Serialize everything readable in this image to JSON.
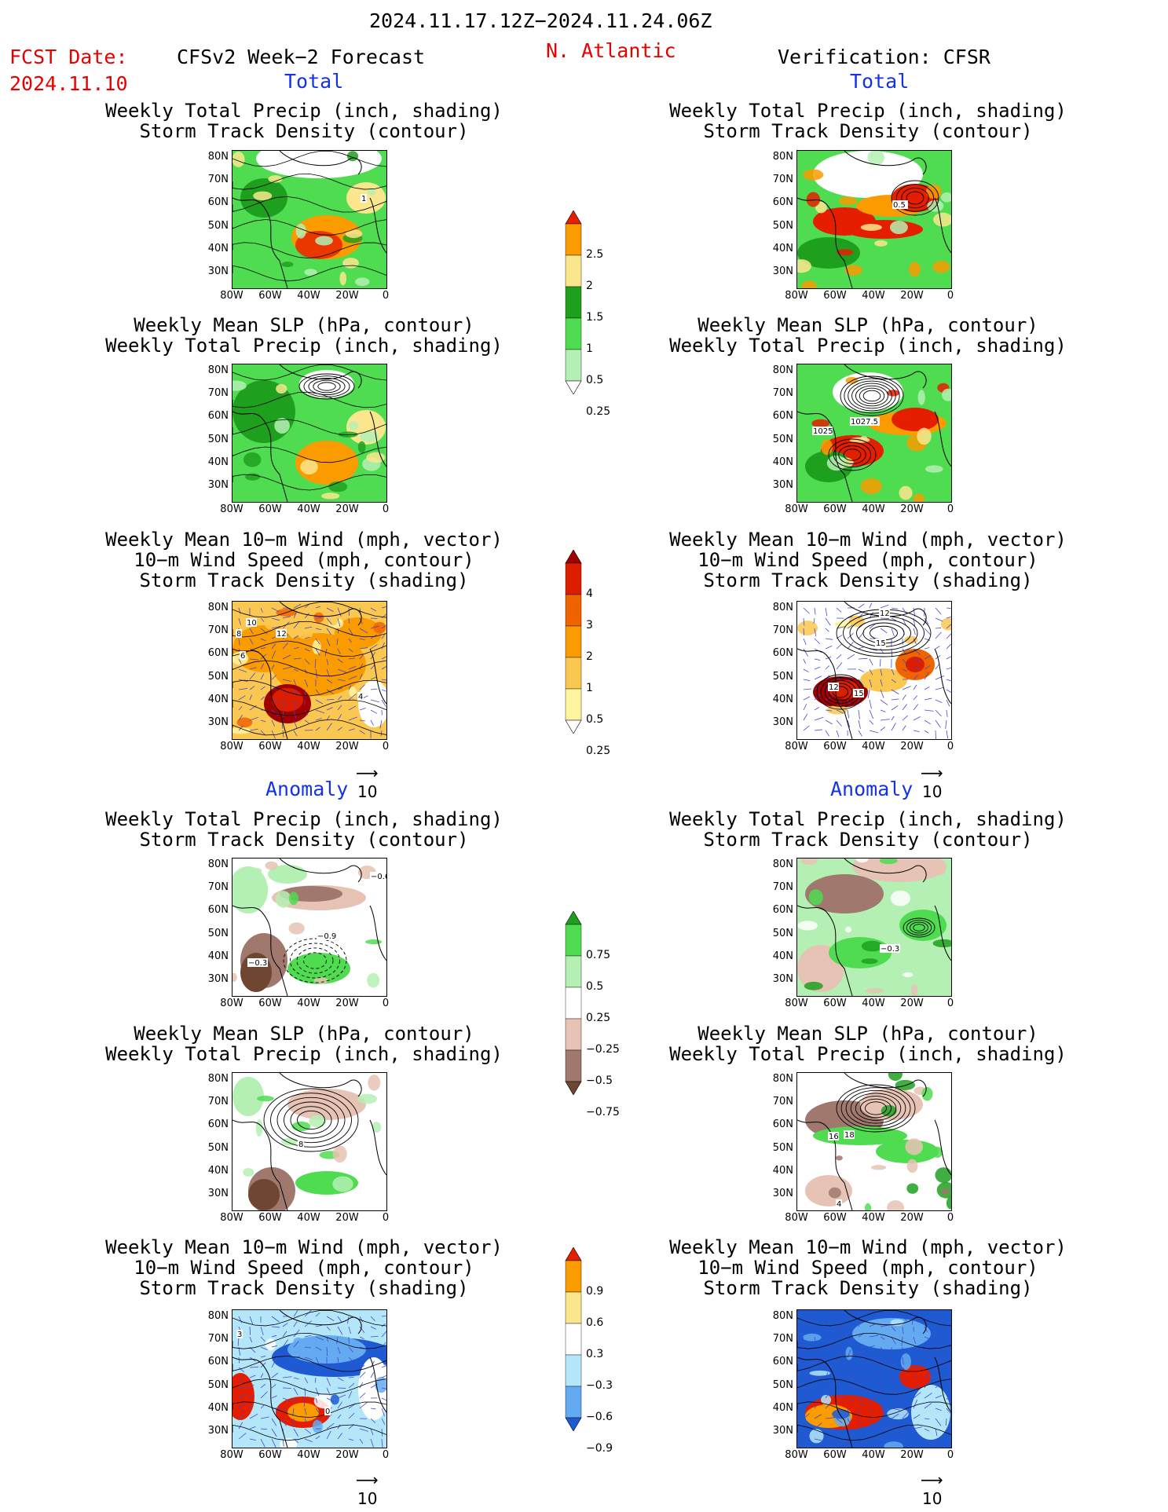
{
  "header": {
    "period": "2024.11.17.12Z−2024.11.24.06Z",
    "fcst_label": "FCST Date:",
    "fcst_date": "2024.11.10",
    "model": "CFSv2 Week−2 Forecast",
    "region": "N. Atlantic",
    "verification": "Verification: CFSR"
  },
  "sections": {
    "total_left": "Total",
    "total_right": "Total",
    "anom_left": "Anomaly",
    "anom_right": "Anomaly"
  },
  "titles": {
    "precip_storm": "Weekly Total Precip (inch, shading)\nStorm Track Density (contour)",
    "slp_precip": "Weekly Mean SLP (hPa, contour)\nWeekly Total Precip (inch, shading)",
    "wind_storm": "Weekly Mean 10−m Wind (mph, vector)\n10−m Wind Speed (mph, contour)\nStorm Track Density (shading)"
  },
  "axes": {
    "lat": [
      "80N",
      "70N",
      "60N",
      "50N",
      "40N",
      "30N"
    ],
    "lon": [
      "80W",
      "60W",
      "40W",
      "20W",
      "0"
    ]
  },
  "vector_ref": "10",
  "colorbars": {
    "precip_total": [
      "2.5",
      "2",
      "1.5",
      "1",
      "0.5",
      "0.25"
    ],
    "storm_total": [
      "4",
      "3",
      "2",
      "1",
      "0.5",
      "0.25"
    ],
    "precip_anom": [
      "0.75",
      "0.5",
      "0.25",
      "−0.25",
      "−0.5",
      "−0.75"
    ],
    "storm_anom": [
      "0.9",
      "0.6",
      "0.3",
      "−0.3",
      "−0.6",
      "−0.9"
    ]
  },
  "panel_labels": {
    "fc_tot_precip": [
      "1"
    ],
    "obs_tot_precip": [
      "0.5"
    ],
    "obs_tot_slp": [
      "1027.5",
      "1025"
    ],
    "fc_tot_wind": [
      "10",
      "8",
      "12",
      "6",
      "4"
    ],
    "obs_tot_wind": [
      "12",
      "15",
      "15",
      "12"
    ],
    "fc_anom_precip": [
      "−0.6",
      "−0.9",
      "−0.3"
    ],
    "obs_anom_precip": [
      "−0.3"
    ],
    "fc_anom_slp": [
      "8"
    ],
    "obs_anom_slp": [
      "16",
      "18",
      "4"
    ],
    "fc_anom_wind": [
      "3",
      "0"
    ],
    "obs_anom_wind": []
  },
  "colors": {
    "precip_total": [
      "#b4f0b4",
      "#50dc50",
      "#1ea01e",
      "#fae68c",
      "#fa9b00",
      "#e61e00"
    ],
    "storm_total": [
      "#fff5a0",
      "#fac850",
      "#fa9b00",
      "#f06400",
      "#dc1e00",
      "#a00000"
    ],
    "precip_anom_pos": [
      "#b4f0b4",
      "#50dc50",
      "#1ea01e"
    ],
    "precip_anom_neg": [
      "#e6c3b4",
      "#a0786e",
      "#6e4632"
    ],
    "storm_anom_pos": [
      "#fae68c",
      "#fa9b00",
      "#e61e00"
    ],
    "storm_anom_neg": [
      "#b4e6fa",
      "#64aaf0",
      "#1e5ad2"
    ],
    "title_red": "#e60000",
    "title_blue": "#1432e6"
  }
}
